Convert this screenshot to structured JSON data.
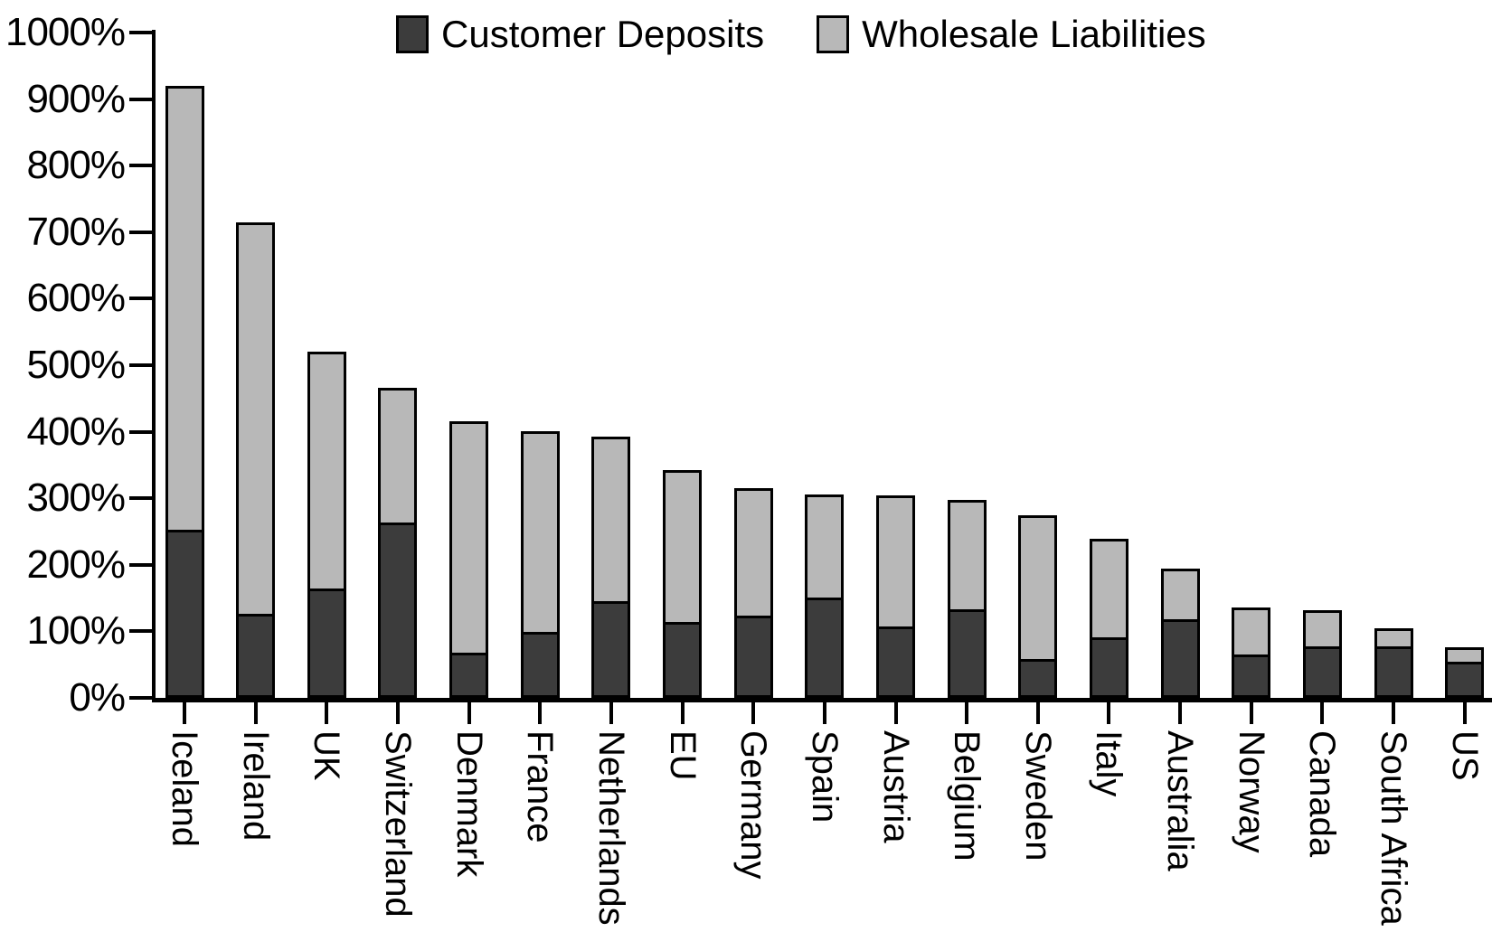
{
  "colors": {
    "deposits": "#3c3c3c",
    "wholesale": "#b8b8b8",
    "axis": "#000000",
    "background": "#ffffff"
  },
  "legend": {
    "deposits_label": "Customer Deposits",
    "wholesale_label": "Wholesale Liabilities"
  },
  "y_axis": {
    "tick_labels": [
      "1000%",
      "900%",
      "800%",
      "700%",
      "600%",
      "500%",
      "400%",
      "300%",
      "200%",
      "100%",
      "0%"
    ]
  },
  "chart_data": {
    "type": "bar",
    "stacked": true,
    "title": "",
    "xlabel": "",
    "ylabel": "",
    "ylim": [
      0,
      1000
    ],
    "ytick_step": 100,
    "ytick_suffix": "%",
    "grid": false,
    "legend_position": "top",
    "categories": [
      "Iceland",
      "Ireland",
      "UK",
      "Switzerland",
      "Denmark",
      "France",
      "Netherlands",
      "EU",
      "Germany",
      "Spain",
      "Austria",
      "Belgium",
      "Sweden",
      "Italy",
      "Australia",
      "Norway",
      "Canada",
      "South Africa",
      "US"
    ],
    "series": [
      {
        "name": "Customer Deposits",
        "color": "#3c3c3c",
        "values": [
          250,
          123,
          162,
          261,
          65,
          96,
          142,
          111,
          121,
          148,
          104,
          130,
          56,
          88,
          115,
          62,
          75,
          75,
          51
        ]
      },
      {
        "name": "Wholesale Liabilities",
        "color": "#b8b8b8",
        "values": [
          670,
          592,
          359,
          205,
          351,
          305,
          250,
          231,
          194,
          158,
          200,
          168,
          219,
          151,
          79,
          74,
          57,
          29,
          25
        ]
      }
    ],
    "totals": [
      920,
      715,
      521,
      466,
      416,
      401,
      392,
      342,
      315,
      306,
      304,
      298,
      275,
      239,
      194,
      136,
      132,
      104,
      76
    ]
  }
}
